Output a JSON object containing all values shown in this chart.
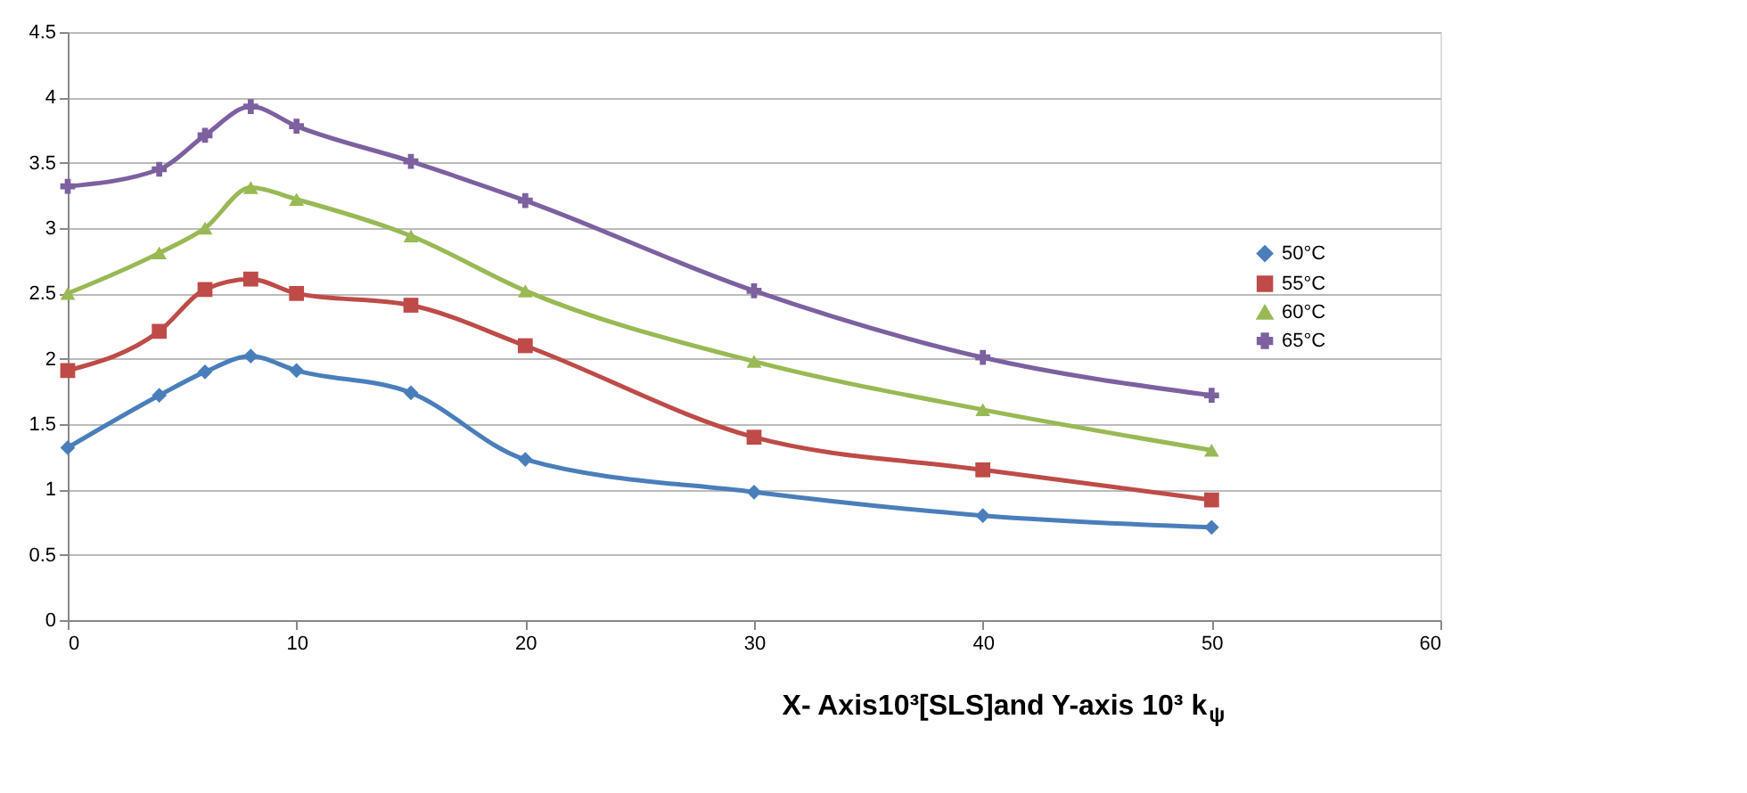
{
  "chart_data": {
    "type": "line",
    "xlabel": "X- Axis10³[SLS]and Y-axis 10³  k$_{ψ}$",
    "x": [
      0,
      4,
      6,
      8,
      10,
      15,
      20,
      30,
      40,
      50
    ],
    "series": [
      {
        "name": "50°C",
        "color": "#4a7ebb",
        "marker": "diamond",
        "values": [
          1.32,
          1.72,
          1.9,
          2.02,
          1.91,
          1.74,
          1.23,
          0.98,
          0.8,
          0.71
        ]
      },
      {
        "name": "55°C",
        "color": "#be4b48",
        "marker": "square",
        "values": [
          1.91,
          2.21,
          2.53,
          2.61,
          2.5,
          2.41,
          2.1,
          1.4,
          1.15,
          0.92
        ]
      },
      {
        "name": "60°C",
        "color": "#98b954",
        "marker": "triangle",
        "values": [
          2.5,
          2.81,
          3.0,
          3.31,
          3.22,
          2.94,
          2.52,
          1.98,
          1.61,
          1.3
        ]
      },
      {
        "name": "65°C",
        "color": "#7d60a0",
        "marker": "cross",
        "values": [
          3.32,
          3.45,
          3.71,
          3.93,
          3.78,
          3.51,
          3.21,
          2.52,
          2.01,
          1.72
        ]
      }
    ],
    "xlim": [
      0,
      60
    ],
    "xticks": [
      0,
      10,
      20,
      30,
      40,
      50,
      60
    ],
    "ylim": [
      0,
      4.5
    ],
    "yticks": [
      0,
      0.5,
      1,
      1.5,
      2,
      2.5,
      3,
      3.5,
      4,
      4.5
    ],
    "grid": "y",
    "legend": "right",
    "line_style": "solid"
  }
}
